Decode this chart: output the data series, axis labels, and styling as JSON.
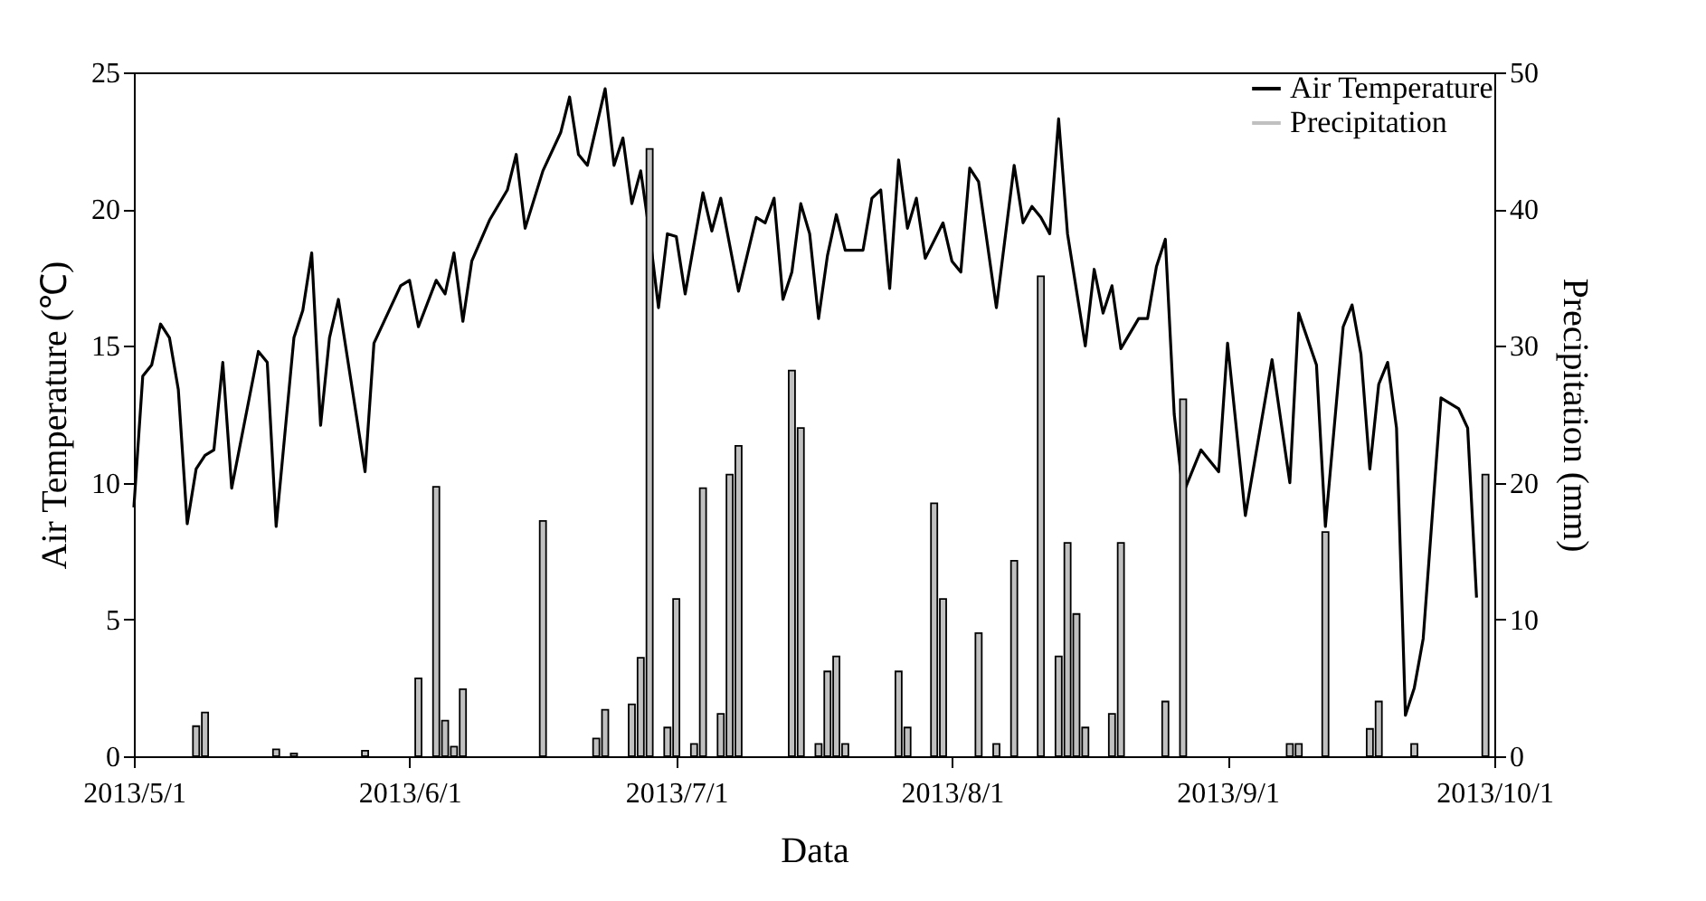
{
  "chart_data": {
    "type": "line",
    "xlabel": "Data",
    "ylabel": "Air Temperature (℃)",
    "y2label": "Precipitation (mm)",
    "xlim": [
      "2013-05-01",
      "2013-10-01"
    ],
    "xticks": [
      {
        "value": "2013-05-01",
        "label": "2013/5/1"
      },
      {
        "value": "2013-06-01",
        "label": "2013/6/1"
      },
      {
        "value": "2013-07-01",
        "label": "2013/7/1"
      },
      {
        "value": "2013-08-01",
        "label": "2013/8/1"
      },
      {
        "value": "2013-09-01",
        "label": "2013/9/1"
      },
      {
        "value": "2013-10-01",
        "label": "2013/10/1"
      }
    ],
    "ylim": [
      0,
      25
    ],
    "yticks": [
      0,
      5,
      10,
      15,
      20,
      25
    ],
    "y2lim": [
      0,
      50
    ],
    "y2ticks": [
      0,
      10,
      20,
      30,
      40,
      50
    ],
    "grid": false,
    "legend": "top right",
    "series": [
      {
        "name": "Air Temperature",
        "type": "line",
        "color": "#000000",
        "x": [
          "2013-05-01",
          "2013-05-02",
          "2013-05-03",
          "2013-05-04",
          "2013-05-05",
          "2013-05-06",
          "2013-05-07",
          "2013-05-08",
          "2013-05-09",
          "2013-05-10",
          "2013-05-11",
          "2013-05-12",
          "2013-05-15",
          "2013-05-16",
          "2013-05-17",
          "2013-05-19",
          "2013-05-20",
          "2013-05-21",
          "2013-05-22",
          "2013-05-23",
          "2013-05-24",
          "2013-05-27",
          "2013-05-28",
          "2013-05-31",
          "2013-06-01",
          "2013-06-02",
          "2013-06-04",
          "2013-06-05",
          "2013-06-06",
          "2013-06-07",
          "2013-06-08",
          "2013-06-10",
          "2013-06-12",
          "2013-06-13",
          "2013-06-14",
          "2013-06-16",
          "2013-06-18",
          "2013-06-19",
          "2013-06-20",
          "2013-06-21",
          "2013-06-23",
          "2013-06-24",
          "2013-06-25",
          "2013-06-26",
          "2013-06-27",
          "2013-06-28",
          "2013-06-29",
          "2013-06-30",
          "2013-07-01",
          "2013-07-02",
          "2013-07-04",
          "2013-07-05",
          "2013-07-06",
          "2013-07-08",
          "2013-07-10",
          "2013-07-11",
          "2013-07-12",
          "2013-07-13",
          "2013-07-14",
          "2013-07-15",
          "2013-07-16",
          "2013-07-17",
          "2013-07-18",
          "2013-07-19",
          "2013-07-20",
          "2013-07-22",
          "2013-07-23",
          "2013-07-24",
          "2013-07-25",
          "2013-07-26",
          "2013-07-27",
          "2013-07-28",
          "2013-07-29",
          "2013-07-31",
          "2013-08-01",
          "2013-08-02",
          "2013-08-03",
          "2013-08-04",
          "2013-08-06",
          "2013-08-08",
          "2013-08-09",
          "2013-08-10",
          "2013-08-11",
          "2013-08-12",
          "2013-08-13",
          "2013-08-14",
          "2013-08-16",
          "2013-08-17",
          "2013-08-18",
          "2013-08-19",
          "2013-08-20",
          "2013-08-22",
          "2013-08-23",
          "2013-08-24",
          "2013-08-25",
          "2013-08-26",
          "2013-08-27",
          "2013-08-29",
          "2013-08-31",
          "2013-09-01",
          "2013-09-03",
          "2013-09-06",
          "2013-09-08",
          "2013-09-09",
          "2013-09-11",
          "2013-09-12",
          "2013-09-14",
          "2013-09-15",
          "2013-09-16",
          "2013-09-17",
          "2013-09-18",
          "2013-09-19",
          "2013-09-20",
          "2013-09-21",
          "2013-09-22",
          "2013-09-23",
          "2013-09-25",
          "2013-09-27",
          "2013-09-28",
          "2013-09-29"
        ],
        "values": [
          9.1,
          13.9,
          14.3,
          15.8,
          15.3,
          13.4,
          8.5,
          10.5,
          11.0,
          11.2,
          14.4,
          9.8,
          14.8,
          14.4,
          8.4,
          15.3,
          16.3,
          18.4,
          12.1,
          15.3,
          16.7,
          10.4,
          15.1,
          17.2,
          17.4,
          15.7,
          17.4,
          16.9,
          18.4,
          15.9,
          18.1,
          19.6,
          20.7,
          22.0,
          19.3,
          21.4,
          22.8,
          24.1,
          22.0,
          21.6,
          24.4,
          21.6,
          22.6,
          20.2,
          21.4,
          19.1,
          16.4,
          19.1,
          19.0,
          16.9,
          20.6,
          19.2,
          20.4,
          17.0,
          19.7,
          19.5,
          20.4,
          16.7,
          17.7,
          20.2,
          19.1,
          16.0,
          18.3,
          19.8,
          18.5,
          18.5,
          20.4,
          20.7,
          17.1,
          21.8,
          19.3,
          20.4,
          18.2,
          19.5,
          18.1,
          17.7,
          21.5,
          21.0,
          16.4,
          21.6,
          19.5,
          20.1,
          19.7,
          19.1,
          23.3,
          19.1,
          15.0,
          17.8,
          16.2,
          17.2,
          14.9,
          16.0,
          16.0,
          17.9,
          18.9,
          12.5,
          9.6,
          11.2,
          10.4,
          15.1,
          8.8,
          14.5,
          10.0,
          16.2,
          14.3,
          8.4,
          15.7,
          16.5,
          14.7,
          10.5,
          13.6,
          14.4,
          12.0,
          1.5,
          2.5,
          4.3,
          13.1,
          12.7,
          12.0,
          5.8
        ]
      },
      {
        "name": "Precipitation",
        "type": "bar",
        "axis": "y2",
        "color": "#c0c0c0",
        "x": [
          "2013-05-08",
          "2013-05-09",
          "2013-05-17",
          "2013-05-19",
          "2013-05-27",
          "2013-06-02",
          "2013-06-04",
          "2013-06-05",
          "2013-06-06",
          "2013-06-07",
          "2013-06-16",
          "2013-06-22",
          "2013-06-23",
          "2013-06-26",
          "2013-06-27",
          "2013-06-28",
          "2013-06-30",
          "2013-07-01",
          "2013-07-03",
          "2013-07-04",
          "2013-07-06",
          "2013-07-07",
          "2013-07-08",
          "2013-07-14",
          "2013-07-15",
          "2013-07-17",
          "2013-07-18",
          "2013-07-19",
          "2013-07-20",
          "2013-07-26",
          "2013-07-27",
          "2013-07-30",
          "2013-07-31",
          "2013-08-04",
          "2013-08-06",
          "2013-08-08",
          "2013-08-11",
          "2013-08-13",
          "2013-08-14",
          "2013-08-15",
          "2013-08-16",
          "2013-08-19",
          "2013-08-20",
          "2013-08-25",
          "2013-08-27",
          "2013-09-08",
          "2013-09-09",
          "2013-09-12",
          "2013-09-17",
          "2013-09-18",
          "2013-09-22",
          "2013-09-30"
        ],
        "values": [
          2.2,
          3.2,
          0.5,
          0.2,
          0.4,
          5.7,
          19.7,
          2.6,
          0.7,
          4.9,
          17.2,
          1.3,
          3.4,
          3.8,
          7.2,
          44.4,
          2.1,
          11.5,
          0.9,
          19.6,
          3.1,
          20.6,
          22.7,
          28.2,
          24.0,
          0.9,
          6.2,
          7.3,
          0.9,
          6.2,
          2.1,
          18.5,
          11.5,
          9.0,
          0.9,
          14.3,
          35.1,
          7.3,
          15.6,
          10.4,
          2.1,
          3.1,
          15.6,
          4.0,
          26.1,
          0.9,
          0.9,
          16.4,
          2.0,
          4.0,
          0.9,
          20.6
        ]
      }
    ]
  }
}
